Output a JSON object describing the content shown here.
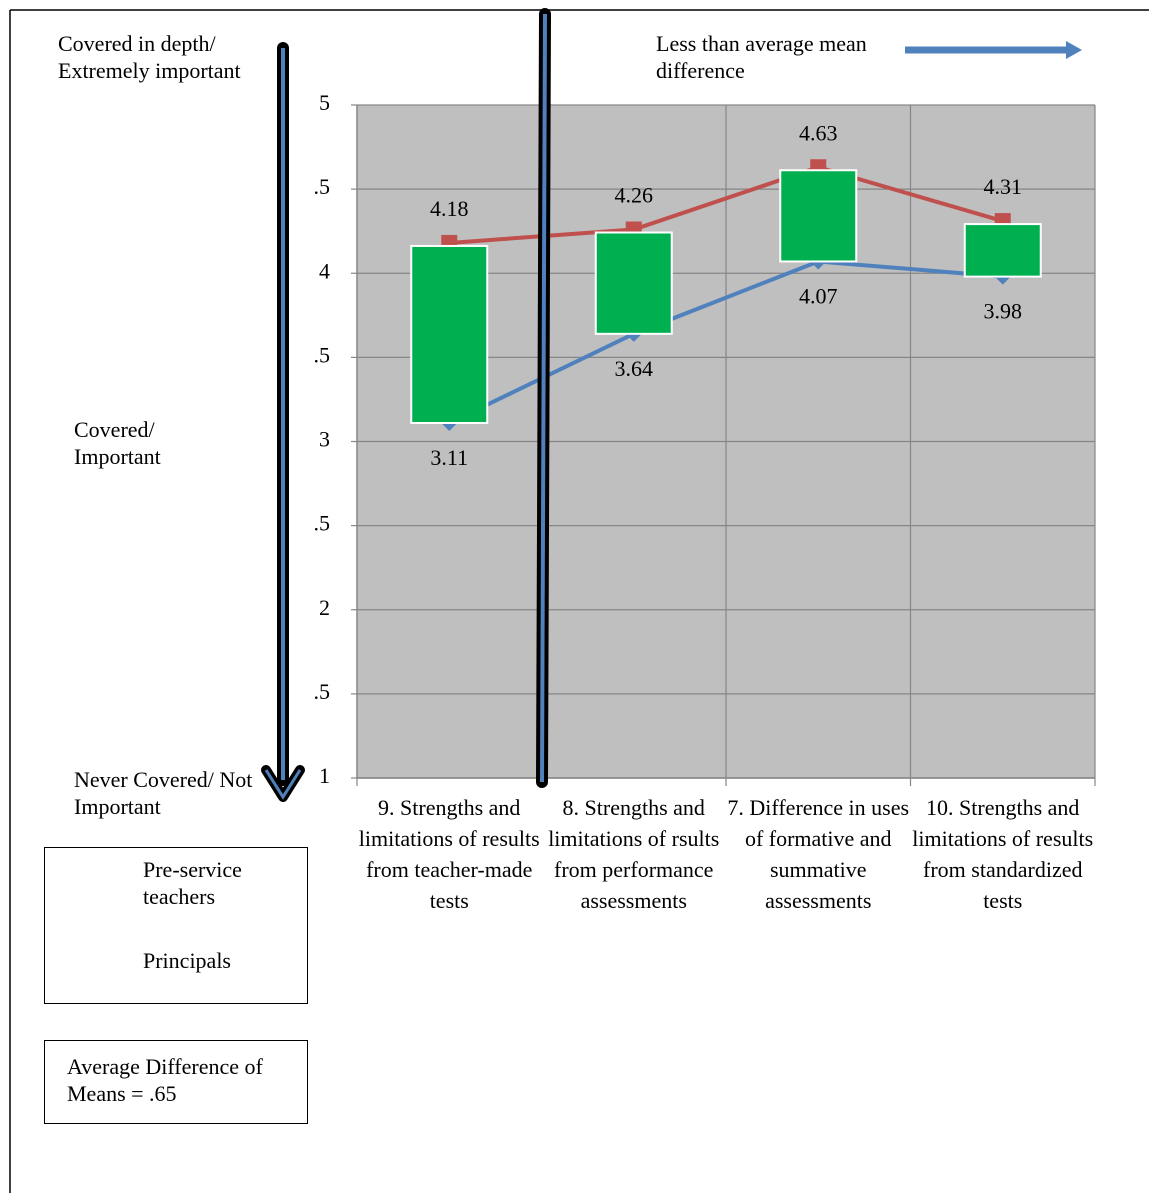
{
  "chart_data": {
    "type": "line",
    "categories": [
      "9. Strengths and limitations of results from teacher-made tests",
      "8. Strengths and limitations of rsults from performance assessments",
      "7. Difference in uses of formative and summative assessments",
      "10. Strengths and limitations of results from standardized tests"
    ],
    "series": [
      {
        "name": "Pre-service teachers",
        "color": "#4f81bd",
        "values": [
          3.11,
          3.64,
          4.07,
          3.98
        ]
      },
      {
        "name": "Principals",
        "color": "#c0504d",
        "values": [
          4.18,
          4.26,
          4.63,
          4.31
        ]
      }
    ],
    "up_down_bar_color": "#00b050",
    "ylim": [
      1,
      5
    ],
    "yticks": [
      1,
      {
        "value": 1.5,
        "label": ".5"
      },
      2,
      {
        "value": 2.5,
        "label": ".5"
      },
      3,
      {
        "value": 3.5,
        "label": ".5"
      },
      4,
      {
        "value": 4.5,
        "label": ".5"
      },
      5
    ],
    "grid": true,
    "annotations": [
      "Covered in depth/ Extremely important",
      "Covered/ Important",
      "Never Covered/ Not Important",
      "Less than average mean difference",
      "Average Difference of Means = .65"
    ]
  }
}
